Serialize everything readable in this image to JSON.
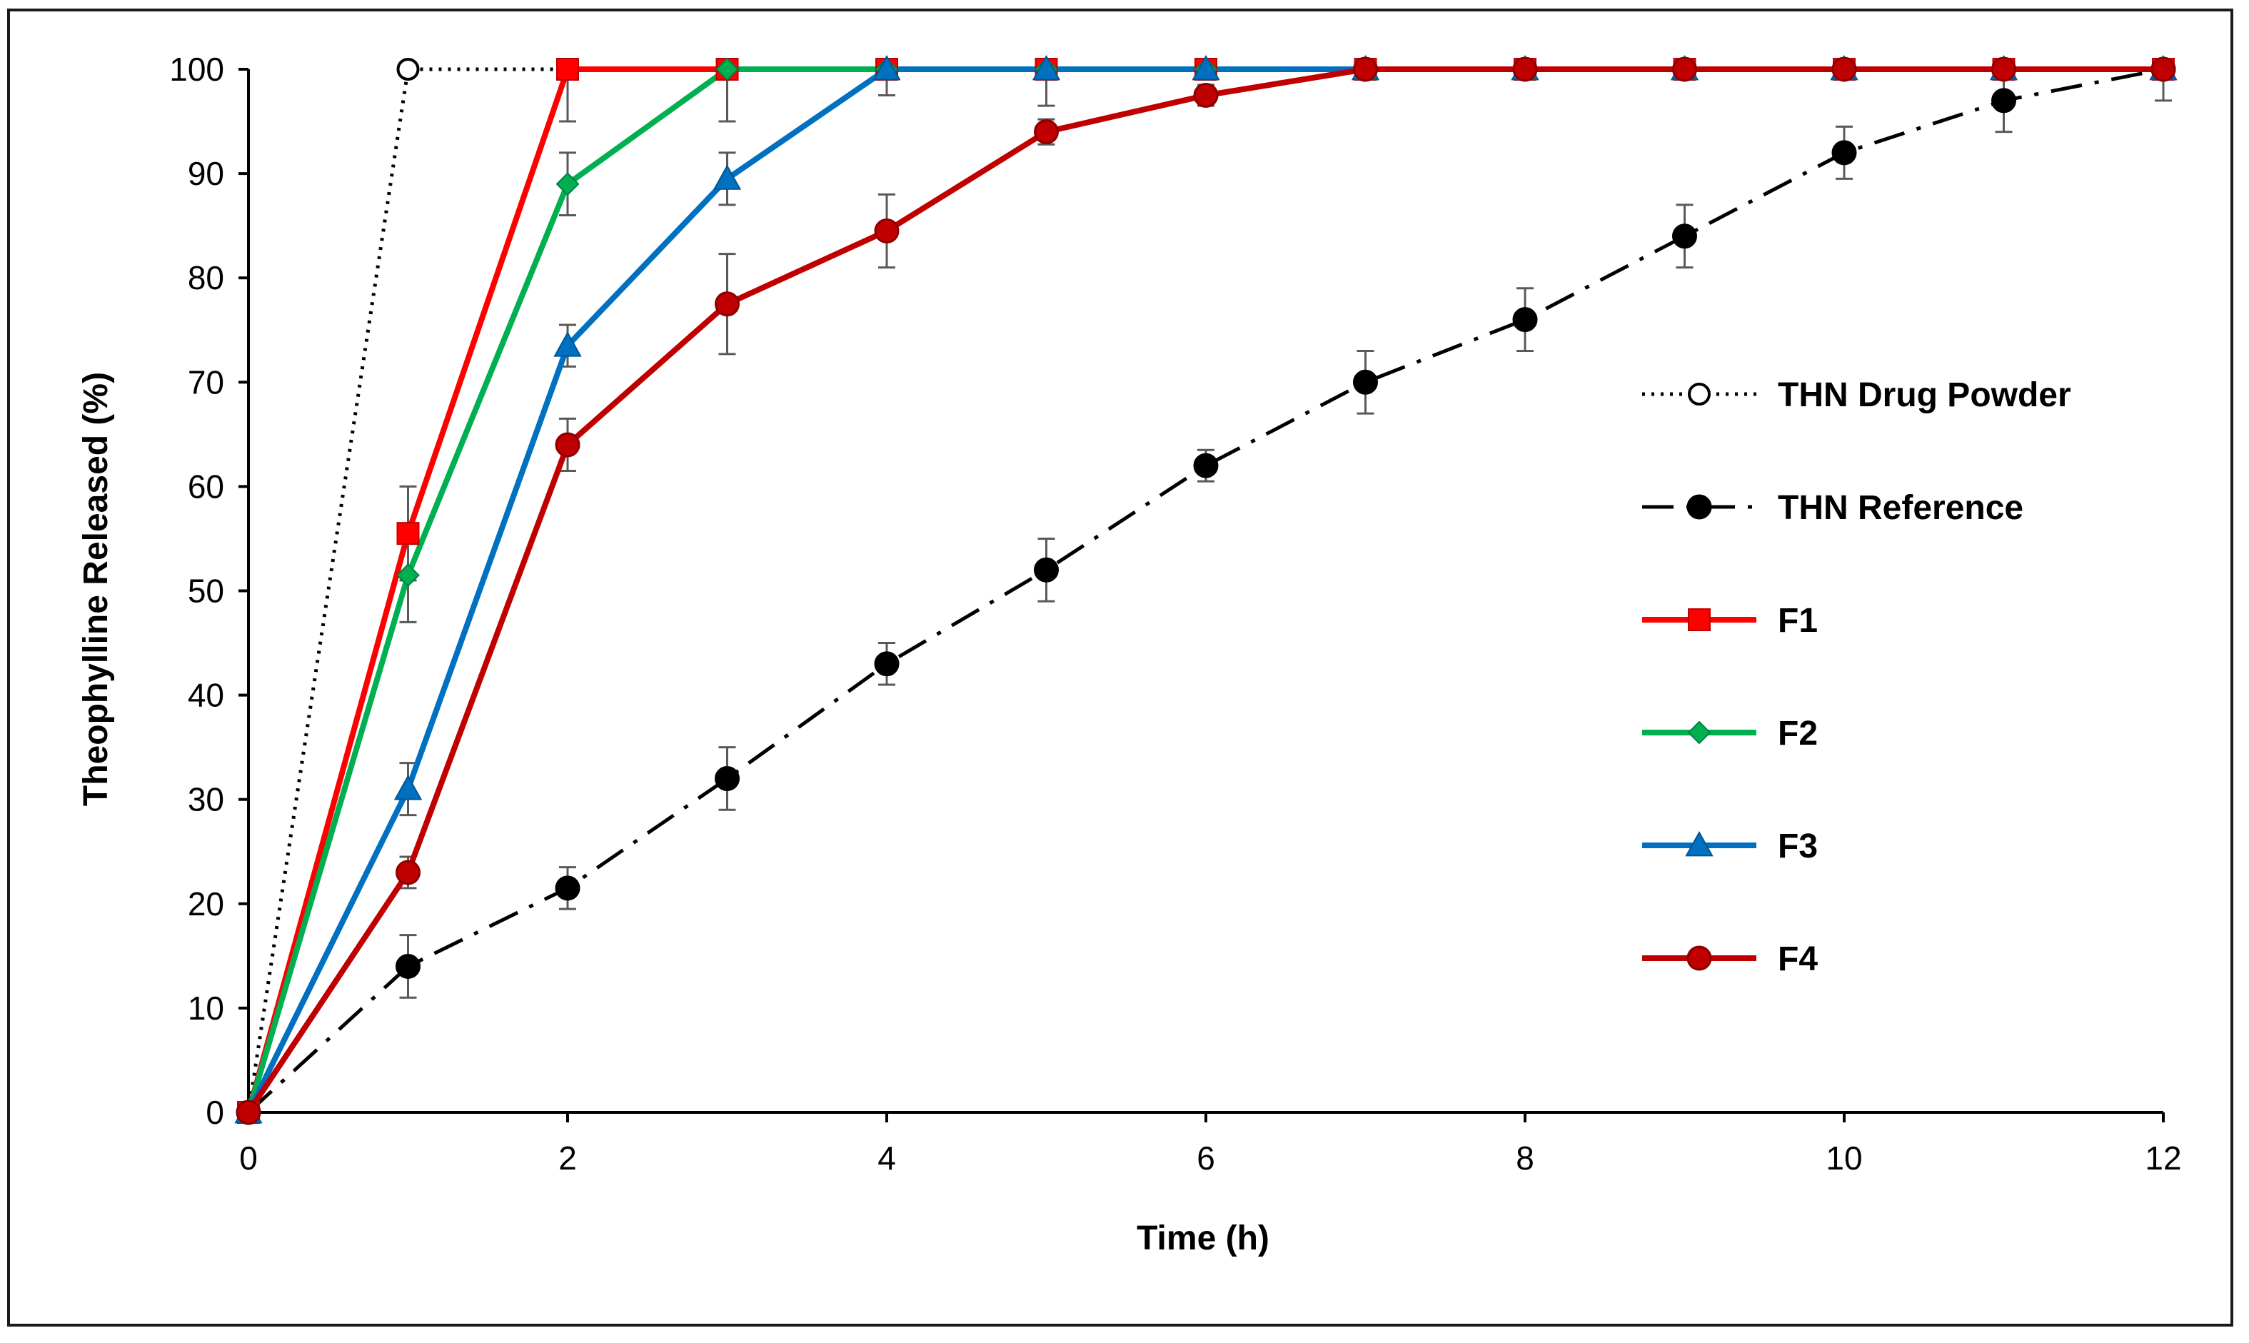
{
  "chart_data": {
    "type": "line",
    "title": "",
    "xlabel": "Time (h)",
    "ylabel": "Theophylline Released  (%)",
    "xlim": [
      0,
      12
    ],
    "ylim": [
      0,
      100
    ],
    "xticks": [
      0,
      2,
      4,
      6,
      8,
      10,
      12
    ],
    "yticks": [
      0,
      10,
      20,
      30,
      40,
      50,
      60,
      70,
      80,
      90,
      100
    ],
    "grid": false,
    "legend_position": "right",
    "series": [
      {
        "name": "THN Drug Powder",
        "color": "#000000",
        "line_style": "dotted",
        "marker": "open-circle",
        "x": [
          0,
          1,
          2,
          3,
          4,
          5,
          6,
          7,
          8,
          9,
          10,
          11,
          12
        ],
        "y": [
          0,
          100,
          100,
          100,
          100,
          100,
          100,
          100,
          100,
          100,
          100,
          100,
          100
        ],
        "err": [
          0,
          0,
          0,
          0,
          0,
          0,
          0,
          0,
          0,
          0,
          0,
          0,
          0
        ]
      },
      {
        "name": "THN Reference",
        "color": "#000000",
        "line_style": "dash-dot",
        "marker": "circle",
        "x": [
          0,
          1,
          2,
          3,
          4,
          5,
          6,
          7,
          8,
          9,
          10,
          11,
          12
        ],
        "y": [
          0,
          14,
          21.5,
          32,
          43,
          52,
          62,
          70,
          76,
          84,
          92,
          97,
          100
        ],
        "err": [
          0,
          3,
          2,
          3,
          2,
          3,
          1.5,
          3,
          3,
          3,
          2.5,
          3,
          3
        ]
      },
      {
        "name": "F1",
        "color": "#ff0000",
        "line_style": "solid",
        "marker": "square",
        "x": [
          0,
          1,
          2,
          3,
          4,
          5,
          6,
          7,
          8,
          9,
          10,
          11,
          12
        ],
        "y": [
          0,
          55.5,
          100,
          100,
          100,
          100,
          100,
          100,
          100,
          100,
          100,
          100,
          100
        ],
        "err": [
          0,
          4.5,
          5,
          0,
          0,
          0,
          0,
          0,
          0,
          0,
          0,
          0,
          0
        ]
      },
      {
        "name": "F2",
        "color": "#00b050",
        "line_style": "solid",
        "marker": "diamond",
        "x": [
          0,
          1,
          2,
          3,
          4,
          5,
          6,
          7,
          8,
          9,
          10,
          11,
          12
        ],
        "y": [
          0,
          51.5,
          89,
          100,
          100,
          100,
          100,
          100,
          100,
          100,
          100,
          100,
          100
        ],
        "err": [
          0,
          4.5,
          3,
          5,
          0,
          0,
          0,
          0,
          0,
          0,
          0,
          0,
          0
        ]
      },
      {
        "name": "F3",
        "color": "#0070c0",
        "line_style": "solid",
        "marker": "triangle",
        "x": [
          0,
          1,
          2,
          3,
          4,
          5,
          6,
          7,
          8,
          9,
          10,
          11,
          12
        ],
        "y": [
          0,
          31,
          73.5,
          89.5,
          100,
          100,
          100,
          100,
          100,
          100,
          100,
          100,
          100
        ],
        "err": [
          0,
          2.5,
          2,
          2.5,
          2.5,
          3.5,
          0,
          0,
          0,
          0,
          0,
          0,
          0
        ]
      },
      {
        "name": "F4",
        "color": "#c00000",
        "line_style": "solid",
        "marker": "circle",
        "x": [
          0,
          1,
          2,
          3,
          4,
          5,
          6,
          7,
          8,
          9,
          10,
          11,
          12
        ],
        "y": [
          0,
          23,
          64,
          77.5,
          84.5,
          94,
          97.5,
          100,
          100,
          100,
          100,
          100,
          100
        ],
        "err": [
          0,
          1.5,
          2.5,
          4.8,
          3.5,
          1.2,
          1,
          0,
          0,
          0,
          0,
          0,
          0
        ]
      }
    ]
  }
}
